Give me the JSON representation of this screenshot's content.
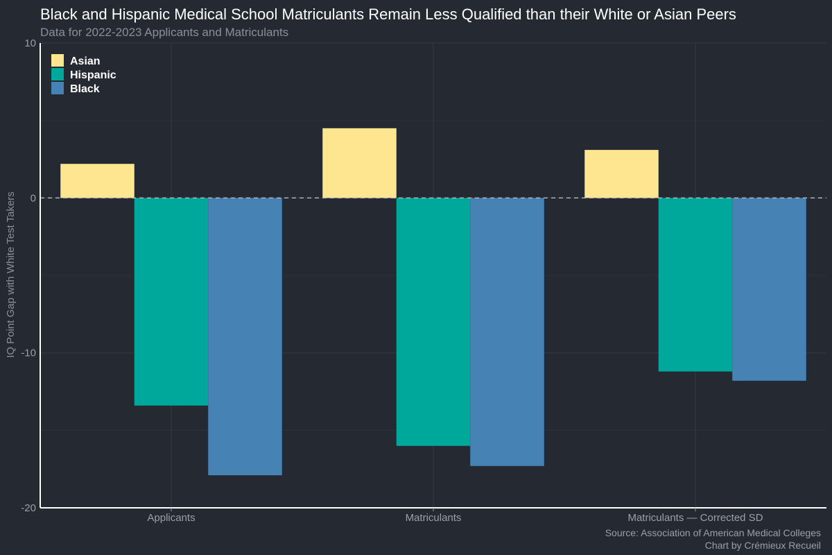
{
  "chart_data": {
    "type": "bar",
    "title": "Black and Hispanic Medical School Matriculants Remain Less Qualified than their White or Asian Peers",
    "subtitle": "Data for 2022-2023 Applicants and Matriculants",
    "xlabel": "",
    "ylabel": "IQ Point Gap with White Test Takers",
    "ylim": [
      -20,
      10
    ],
    "yticks": [
      10,
      0,
      -10,
      -20
    ],
    "ytick_labels": [
      "10",
      "0",
      "-10",
      "-20"
    ],
    "categories": [
      "Applicants",
      "Matriculants",
      "Matriculants — Corrected SD"
    ],
    "series": [
      {
        "name": "Asian",
        "color": "#fde68f",
        "values": [
          2.2,
          4.5,
          3.1
        ]
      },
      {
        "name": "Hispanic",
        "color": "#00a89c",
        "values": [
          -13.4,
          -16.0,
          -11.2
        ]
      },
      {
        "name": "Black",
        "color": "#4782b4",
        "values": [
          -17.9,
          -17.3,
          -11.8
        ]
      }
    ],
    "reference_line": 0,
    "legend_position": "top-left",
    "grid": true,
    "source": "Source: Association of American Medical Colleges",
    "credit": "Chart by Crémieux Recueil"
  }
}
